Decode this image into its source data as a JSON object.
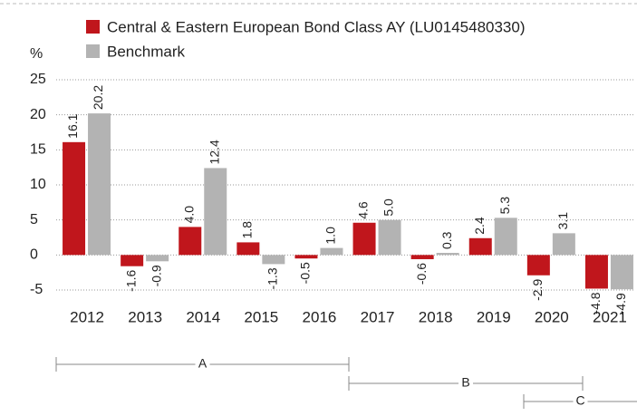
{
  "chart_data": {
    "type": "bar",
    "y_axis_label": "%",
    "categories": [
      "2012",
      "2013",
      "2014",
      "2015",
      "2016",
      "2017",
      "2018",
      "2019",
      "2020",
      "2021"
    ],
    "series": [
      {
        "name": "Central & Eastern European Bond Class AY (LU0145480330)",
        "color": "#c0161c",
        "values": [
          16.1,
          -1.6,
          4.0,
          1.8,
          -0.5,
          4.6,
          -0.6,
          2.4,
          -2.9,
          -4.8
        ],
        "value_labels": [
          "16.1",
          "-1.6",
          "4.0",
          "1.8",
          "-0.5",
          "4.6",
          "-0.6",
          "2.4",
          "-2.9",
          "-4.8"
        ]
      },
      {
        "name": "Benchmark",
        "color": "#b3b3b3",
        "values": [
          20.2,
          -0.9,
          12.4,
          -1.3,
          1.0,
          5.0,
          0.3,
          5.3,
          3.1,
          -4.9
        ],
        "value_labels": [
          "20.2",
          "-0.9",
          "12.4",
          "-1.3",
          "1.0",
          "5.0",
          "0.3",
          "5.3",
          "3.1",
          "-4.9"
        ]
      }
    ],
    "ylim": [
      -5,
      25
    ],
    "yticks": [
      -5,
      0,
      5,
      10,
      15,
      20,
      25
    ],
    "grid": true,
    "periods": [
      "A",
      "B",
      "C"
    ]
  }
}
